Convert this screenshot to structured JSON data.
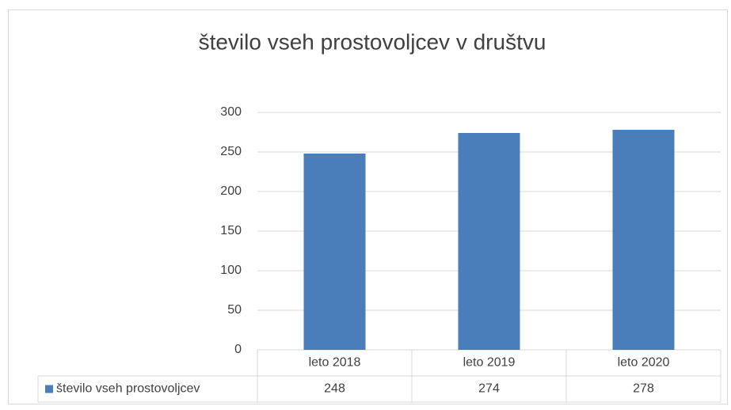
{
  "chart_data": {
    "type": "bar",
    "title": "število vseh prostovoljcev v društvu",
    "categories": [
      "leto 2018",
      "leto 2019",
      "leto 2020"
    ],
    "series": [
      {
        "name": "število vseh prostovoljcev",
        "color": "#4a7ebb",
        "values": [
          248,
          274,
          278
        ]
      }
    ],
    "ylim": [
      0,
      300
    ],
    "yticks": [
      0,
      50,
      100,
      150,
      200,
      250,
      300
    ],
    "grid": true,
    "data_table": true
  }
}
